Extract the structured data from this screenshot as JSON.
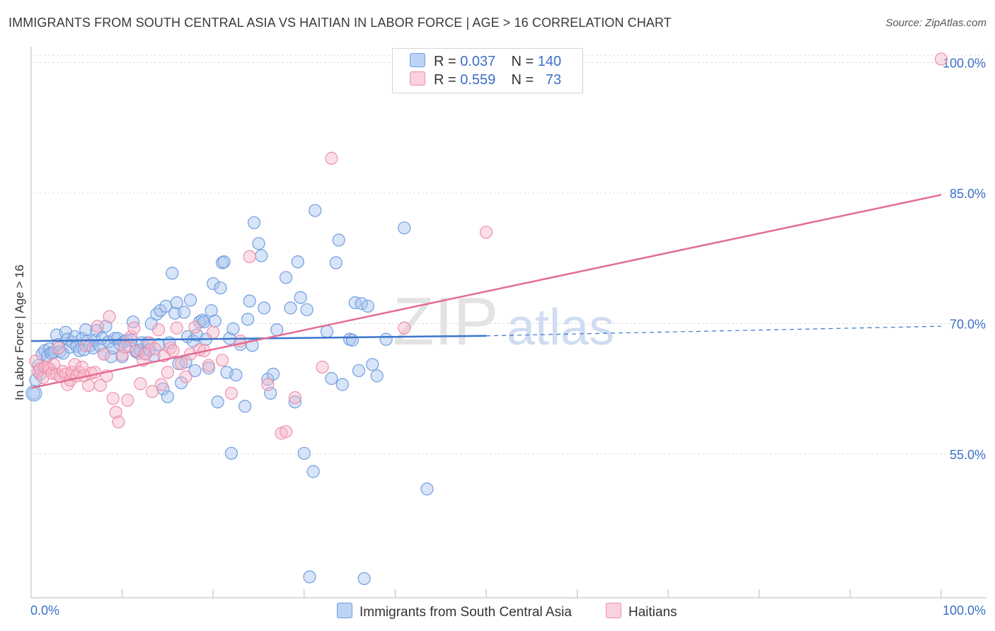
{
  "header": {
    "title": "IMMIGRANTS FROM SOUTH CENTRAL ASIA VS HAITIAN IN LABOR FORCE | AGE > 16 CORRELATION CHART",
    "source": "Source: ZipAtlas.com"
  },
  "watermark": {
    "zip": "ZIP",
    "atlas": "atlas"
  },
  "legend": {
    "rows": [
      {
        "r_label": "R =",
        "r_value": "0.037",
        "n_label": "N =",
        "n_value": "140",
        "color": "#a9c4ee"
      },
      {
        "r_label": "R =",
        "r_value": "0.559",
        "n_label": "N =",
        "n_value": "73",
        "color": "#f6b8ca"
      }
    ]
  },
  "bottom_legend": {
    "items": [
      {
        "label": "Immigrants from South Central Asia",
        "color": "#a9c4ee"
      },
      {
        "label": "Haitians",
        "color": "#f6b8ca"
      }
    ]
  },
  "chart_data": {
    "type": "scatter",
    "title": "IMMIGRANTS FROM SOUTH CENTRAL ASIA VS HAITIAN IN LABOR FORCE | AGE > 16 CORRELATION CHART",
    "xlabel": "",
    "ylabel": "In Labor Force | Age > 16",
    "xlim": [
      0,
      100
    ],
    "ylim": [
      38.5,
      101.5
    ],
    "x_tick_labels": [
      "0.0%",
      "100.0%"
    ],
    "y_ticks": [
      55,
      70,
      85,
      100
    ],
    "y_tick_labels": [
      "55.0%",
      "70.0%",
      "85.0%",
      "100.0%"
    ],
    "grid": true,
    "series": [
      {
        "name": "Immigrants from South Central Asia",
        "color": "#6f9fe0",
        "fill": "#a9c4ee",
        "trend": {
          "x": [
            0,
            50
          ],
          "y": [
            68.0,
            68.6
          ],
          "dashed_to": [
            100,
            69.7
          ],
          "color": "#3a75cc"
        },
        "points": [
          [
            0.3,
            62.0
          ],
          [
            0.5,
            63.5
          ],
          [
            0.8,
            65.2
          ],
          [
            1.0,
            64.2
          ],
          [
            1.2,
            66.5
          ],
          [
            1.5,
            66.9
          ],
          [
            1.8,
            66.3
          ],
          [
            2.0,
            67.1
          ],
          [
            2.2,
            66.6
          ],
          [
            2.5,
            66.7
          ],
          [
            2.8,
            68.7
          ],
          [
            3.0,
            67.6
          ],
          [
            3.2,
            66.8
          ],
          [
            3.5,
            66.6
          ],
          [
            3.8,
            69.0
          ],
          [
            4.0,
            68.2
          ],
          [
            4.3,
            67.3
          ],
          [
            4.5,
            67.9
          ],
          [
            4.8,
            68.5
          ],
          [
            5.0,
            67.4
          ],
          [
            5.3,
            66.9
          ],
          [
            5.6,
            68.3
          ],
          [
            5.8,
            67.0
          ],
          [
            6.0,
            69.3
          ],
          [
            6.2,
            68.0
          ],
          [
            6.5,
            67.5
          ],
          [
            6.8,
            67.2
          ],
          [
            7.0,
            68.1
          ],
          [
            7.2,
            69.2
          ],
          [
            7.5,
            67.5
          ],
          [
            7.8,
            68.3
          ],
          [
            8.0,
            66.5
          ],
          [
            8.2,
            69.7
          ],
          [
            8.5,
            67.9
          ],
          [
            8.8,
            66.2
          ],
          [
            9.0,
            67.2
          ],
          [
            9.2,
            68.3
          ],
          [
            9.5,
            68.3
          ],
          [
            9.8,
            67.6
          ],
          [
            10.0,
            66.2
          ],
          [
            10.2,
            67.9
          ],
          [
            10.5,
            68.1
          ],
          [
            10.8,
            67.4
          ],
          [
            11.0,
            68.1
          ],
          [
            11.2,
            70.2
          ],
          [
            11.5,
            66.8
          ],
          [
            11.8,
            66.6
          ],
          [
            12.0,
            67.0
          ],
          [
            12.2,
            67.8
          ],
          [
            12.5,
            66.6
          ],
          [
            12.8,
            67.8
          ],
          [
            13.0,
            67.0
          ],
          [
            13.2,
            70.0
          ],
          [
            13.5,
            66.3
          ],
          [
            13.8,
            71.1
          ],
          [
            14.0,
            67.6
          ],
          [
            14.2,
            71.5
          ],
          [
            14.5,
            62.5
          ],
          [
            14.8,
            72.0
          ],
          [
            15.0,
            61.6
          ],
          [
            15.2,
            67.8
          ],
          [
            15.5,
            75.8
          ],
          [
            15.8,
            71.2
          ],
          [
            16.0,
            72.4
          ],
          [
            16.2,
            65.4
          ],
          [
            16.5,
            63.2
          ],
          [
            16.8,
            71.3
          ],
          [
            17.0,
            65.6
          ],
          [
            17.2,
            68.5
          ],
          [
            17.5,
            72.7
          ],
          [
            17.8,
            68.0
          ],
          [
            18.0,
            64.6
          ],
          [
            18.2,
            68.7
          ],
          [
            18.5,
            70.2
          ],
          [
            18.8,
            70.4
          ],
          [
            19.0,
            70.2
          ],
          [
            19.2,
            68.2
          ],
          [
            19.5,
            64.9
          ],
          [
            19.8,
            71.5
          ],
          [
            20.0,
            74.6
          ],
          [
            20.2,
            70.3
          ],
          [
            20.5,
            61.0
          ],
          [
            20.8,
            74.1
          ],
          [
            21.0,
            77.0
          ],
          [
            21.2,
            77.1
          ],
          [
            21.5,
            64.4
          ],
          [
            21.8,
            68.3
          ],
          [
            22.0,
            55.1
          ],
          [
            22.2,
            69.4
          ],
          [
            22.5,
            64.1
          ],
          [
            23.0,
            67.6
          ],
          [
            23.5,
            60.5
          ],
          [
            23.8,
            70.5
          ],
          [
            24.0,
            72.6
          ],
          [
            24.3,
            67.5
          ],
          [
            24.5,
            81.6
          ],
          [
            25.0,
            79.2
          ],
          [
            25.3,
            77.8
          ],
          [
            25.6,
            71.8
          ],
          [
            26.0,
            63.6
          ],
          [
            26.3,
            62.0
          ],
          [
            26.6,
            64.2
          ],
          [
            27.0,
            69.3
          ],
          [
            28.0,
            75.3
          ],
          [
            28.5,
            71.8
          ],
          [
            29.0,
            61.0
          ],
          [
            29.3,
            77.1
          ],
          [
            29.6,
            73.0
          ],
          [
            30.0,
            55.1
          ],
          [
            30.3,
            71.6
          ],
          [
            30.6,
            40.9
          ],
          [
            31.0,
            53.0
          ],
          [
            31.2,
            83.0
          ],
          [
            32.5,
            69.1
          ],
          [
            33.0,
            63.7
          ],
          [
            33.5,
            77.0
          ],
          [
            33.8,
            79.6
          ],
          [
            34.2,
            63.0
          ],
          [
            35.0,
            68.2
          ],
          [
            35.3,
            68.1
          ],
          [
            35.6,
            72.4
          ],
          [
            36.0,
            64.6
          ],
          [
            36.3,
            72.3
          ],
          [
            36.6,
            40.7
          ],
          [
            37.0,
            72.0
          ],
          [
            37.5,
            65.3
          ],
          [
            38.0,
            64.0
          ],
          [
            39.0,
            68.2
          ],
          [
            41.0,
            81.0
          ],
          [
            43.5,
            51.0
          ]
        ]
      },
      {
        "name": "Haitians",
        "color": "#ee8fab",
        "fill": "#f6b8ca",
        "trend": {
          "x": [
            0,
            100
          ],
          "y": [
            62.6,
            84.8
          ],
          "color": "#e46c92"
        },
        "points": [
          [
            0.5,
            65.7
          ],
          [
            0.8,
            64.5
          ],
          [
            1.0,
            64.8
          ],
          [
            1.3,
            63.8
          ],
          [
            1.5,
            65.0
          ],
          [
            1.8,
            65.0
          ],
          [
            2.0,
            64.8
          ],
          [
            2.3,
            64.3
          ],
          [
            2.5,
            65.3
          ],
          [
            2.8,
            64.2
          ],
          [
            3.0,
            67.2
          ],
          [
            3.2,
            63.9
          ],
          [
            3.5,
            64.5
          ],
          [
            3.8,
            64.2
          ],
          [
            4.0,
            63.0
          ],
          [
            4.3,
            63.5
          ],
          [
            4.5,
            64.4
          ],
          [
            4.8,
            65.3
          ],
          [
            5.0,
            64.0
          ],
          [
            5.3,
            64.4
          ],
          [
            5.6,
            65.0
          ],
          [
            5.8,
            64.0
          ],
          [
            6.0,
            67.5
          ],
          [
            6.3,
            62.9
          ],
          [
            6.6,
            64.3
          ],
          [
            7.0,
            64.4
          ],
          [
            7.3,
            69.7
          ],
          [
            7.6,
            62.9
          ],
          [
            8.0,
            66.5
          ],
          [
            8.3,
            64.0
          ],
          [
            8.6,
            70.8
          ],
          [
            9.0,
            61.4
          ],
          [
            9.3,
            59.8
          ],
          [
            9.6,
            58.7
          ],
          [
            10.0,
            66.4
          ],
          [
            10.3,
            67.3
          ],
          [
            10.6,
            61.2
          ],
          [
            11.0,
            68.5
          ],
          [
            11.3,
            69.5
          ],
          [
            11.6,
            66.9
          ],
          [
            12.0,
            63.1
          ],
          [
            12.3,
            65.8
          ],
          [
            12.6,
            66.5
          ],
          [
            13.0,
            67.8
          ],
          [
            13.3,
            62.2
          ],
          [
            13.6,
            67.1
          ],
          [
            14.0,
            69.3
          ],
          [
            14.3,
            63.0
          ],
          [
            14.6,
            66.3
          ],
          [
            15.0,
            64.4
          ],
          [
            15.3,
            67.2
          ],
          [
            15.6,
            66.9
          ],
          [
            16.0,
            69.5
          ],
          [
            16.5,
            65.4
          ],
          [
            17.0,
            63.9
          ],
          [
            17.5,
            66.5
          ],
          [
            18.0,
            69.6
          ],
          [
            18.5,
            67.0
          ],
          [
            19.0,
            66.9
          ],
          [
            19.5,
            65.2
          ],
          [
            20.0,
            69.0
          ],
          [
            21.0,
            65.8
          ],
          [
            22.0,
            62.0
          ],
          [
            23.0,
            68.0
          ],
          [
            24.0,
            77.7
          ],
          [
            26.0,
            63.0
          ],
          [
            27.5,
            57.4
          ],
          [
            28.0,
            57.6
          ],
          [
            29.0,
            61.5
          ],
          [
            32.0,
            65.0
          ],
          [
            33.0,
            89.0
          ],
          [
            41.0,
            69.5
          ],
          [
            50.0,
            80.5
          ]
        ]
      }
    ],
    "extra_points": [
      {
        "series": "Haitians",
        "x": 100,
        "y": 100.4
      }
    ]
  }
}
